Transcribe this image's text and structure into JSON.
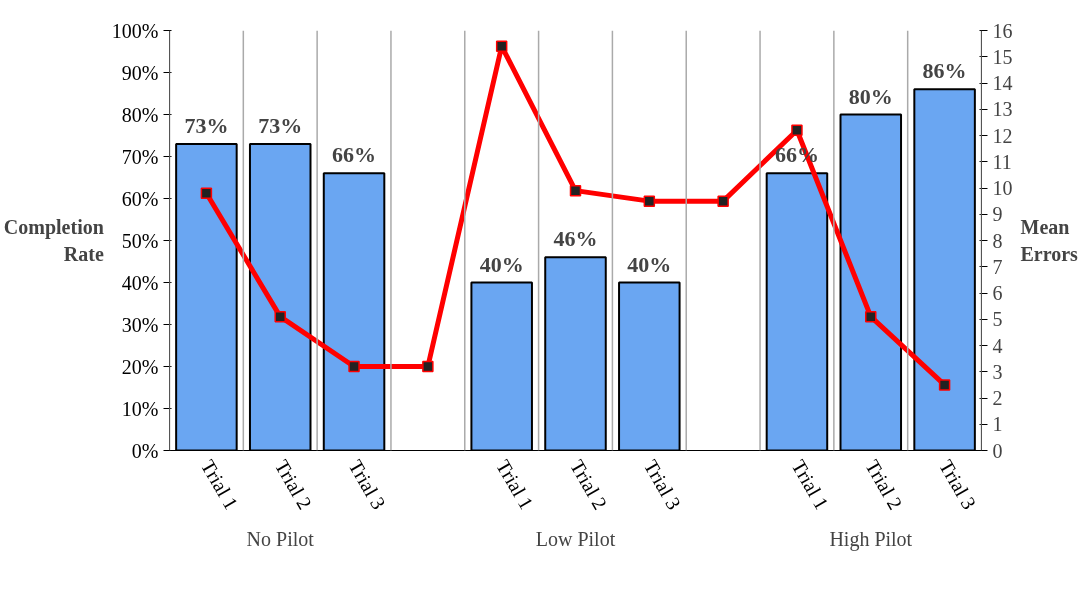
{
  "chart_data": {
    "type": "bar",
    "ylabel": "Completion Rate",
    "y2label": "Mean Errors",
    "categories": [
      "Trial 1",
      "Trial 2",
      "Trial 3",
      null,
      "Trial 1",
      "Trial 2",
      "Trial 3",
      null,
      "Trial 1",
      "Trial 2",
      "Trial 3"
    ],
    "series": [
      {
        "color": "#6aa6f2",
        "values": [
          73,
          73,
          66,
          null,
          40,
          46,
          40,
          null,
          66,
          80,
          86
        ],
        "value_labels": [
          "73%",
          "73%",
          "66%",
          null,
          "40%",
          "46%",
          "40%",
          null,
          "66%",
          "80%",
          "86%"
        ]
      },
      {
        "type": "line",
        "axis": "y2",
        "color": "#ff0000",
        "marker": "square",
        "line_style": "solid",
        "values": [
          9.8,
          5.1,
          3.2,
          3.2,
          15.4,
          9.9,
          9.5,
          9.5,
          12.2,
          5.1,
          2.5
        ]
      }
    ],
    "ylim": [
      0,
      100
    ],
    "yticks": [
      {
        "value": 0,
        "label": "0%"
      },
      {
        "value": 10,
        "label": "10%"
      },
      {
        "value": 20,
        "label": "20%"
      },
      {
        "value": 30,
        "label": "30%"
      },
      {
        "value": 40,
        "label": "40%"
      },
      {
        "value": 50,
        "label": "50%"
      },
      {
        "value": 60,
        "label": "60%"
      },
      {
        "value": 70,
        "label": "70%"
      },
      {
        "value": 80,
        "label": "80%"
      },
      {
        "value": 90,
        "label": "90%"
      },
      {
        "value": 100,
        "label": "100%"
      }
    ],
    "y2lim": [
      0,
      16
    ],
    "y2ticks": [
      0,
      1,
      2,
      3,
      4,
      5,
      6,
      7,
      8,
      9,
      10,
      11,
      12,
      13,
      14,
      15,
      16
    ],
    "grid": "x",
    "annotations": [
      "No Pilot",
      "Low Pilot",
      "High Pilot"
    ]
  }
}
